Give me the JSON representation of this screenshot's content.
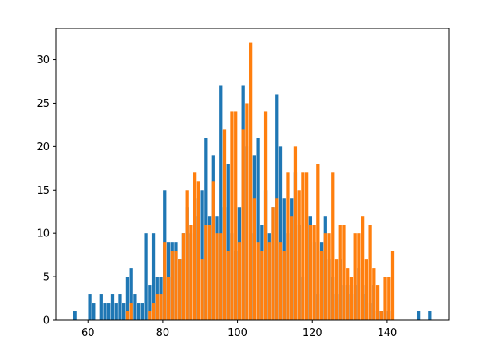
{
  "chart_data": {
    "type": "bar",
    "title": "",
    "xlabel": "",
    "ylabel": "",
    "xlim": [
      51.5,
      156.5
    ],
    "ylim": [
      0,
      33.6
    ],
    "grid": false,
    "legend": "none",
    "xticks": [
      60,
      80,
      100,
      120,
      140
    ],
    "yticks": [
      0,
      5,
      10,
      15,
      20,
      25,
      30
    ],
    "bar_width": 0.9,
    "series": [
      {
        "color": "#1f77b4",
        "bars": [
          [
            56.5,
            1
          ],
          [
            60.5,
            3
          ],
          [
            61.5,
            2
          ],
          [
            63.5,
            3
          ],
          [
            64.5,
            2
          ],
          [
            65.5,
            2
          ],
          [
            66.5,
            3
          ],
          [
            67.5,
            2
          ],
          [
            68.5,
            3
          ],
          [
            69.5,
            2
          ],
          [
            70.5,
            5
          ],
          [
            71.5,
            6
          ],
          [
            72.5,
            3
          ],
          [
            73.5,
            2
          ],
          [
            74.5,
            2
          ],
          [
            75.5,
            10
          ],
          [
            76.5,
            4
          ],
          [
            77.5,
            10
          ],
          [
            78.5,
            5
          ],
          [
            79.5,
            5
          ],
          [
            80.5,
            15
          ],
          [
            81.5,
            9
          ],
          [
            82.5,
            9
          ],
          [
            83.5,
            9
          ],
          [
            84.5,
            7
          ],
          [
            85.5,
            10
          ],
          [
            86.5,
            13
          ],
          [
            87.5,
            10
          ],
          [
            88.5,
            14
          ],
          [
            89.5,
            12
          ],
          [
            90.5,
            15
          ],
          [
            91.5,
            21
          ],
          [
            92.5,
            12
          ],
          [
            93.5,
            19
          ],
          [
            94.5,
            12
          ],
          [
            95.5,
            27
          ],
          [
            96.5,
            13
          ],
          [
            97.5,
            18
          ],
          [
            98.5,
            10
          ],
          [
            99.5,
            8
          ],
          [
            100.5,
            13
          ],
          [
            101.5,
            27
          ],
          [
            102.5,
            20
          ],
          [
            103.5,
            10
          ],
          [
            104.5,
            19
          ],
          [
            105.5,
            21
          ],
          [
            106.5,
            11
          ],
          [
            107.5,
            15
          ],
          [
            108.5,
            10
          ],
          [
            109.5,
            13
          ],
          [
            110.5,
            26
          ],
          [
            111.5,
            20
          ],
          [
            112.5,
            14
          ],
          [
            113.5,
            10
          ],
          [
            114.5,
            14
          ],
          [
            115.5,
            17
          ],
          [
            116.5,
            11
          ],
          [
            117.5,
            5
          ],
          [
            118.5,
            12
          ],
          [
            119.5,
            12
          ],
          [
            120.5,
            9
          ],
          [
            121.5,
            3
          ],
          [
            122.5,
            9
          ],
          [
            123.5,
            12
          ],
          [
            124.5,
            7
          ],
          [
            125.5,
            5
          ],
          [
            126.5,
            3
          ],
          [
            127.5,
            7
          ],
          [
            128.5,
            4
          ],
          [
            129.5,
            4
          ],
          [
            130.5,
            3
          ],
          [
            131.5,
            4
          ],
          [
            132.5,
            6
          ],
          [
            133.5,
            3
          ],
          [
            134.5,
            4
          ],
          [
            135.5,
            2
          ],
          [
            136.5,
            4
          ],
          [
            137.5,
            1
          ],
          [
            138.5,
            1
          ],
          [
            139.5,
            1
          ],
          [
            140.5,
            1
          ],
          [
            148.5,
            1
          ],
          [
            151.5,
            1
          ]
        ]
      },
      {
        "color": "#ff7f0e",
        "bars": [
          [
            70.5,
            1
          ],
          [
            71.5,
            2
          ],
          [
            76.5,
            1
          ],
          [
            77.5,
            2
          ],
          [
            78.5,
            3
          ],
          [
            79.5,
            3
          ],
          [
            80.5,
            9
          ],
          [
            81.5,
            5
          ],
          [
            82.5,
            8
          ],
          [
            83.5,
            8
          ],
          [
            84.5,
            7
          ],
          [
            85.5,
            10
          ],
          [
            86.5,
            15
          ],
          [
            87.5,
            11
          ],
          [
            88.5,
            17
          ],
          [
            89.5,
            16
          ],
          [
            90.5,
            7
          ],
          [
            91.5,
            11
          ],
          [
            92.5,
            11
          ],
          [
            93.5,
            16
          ],
          [
            94.5,
            10
          ],
          [
            95.5,
            10
          ],
          [
            96.5,
            22
          ],
          [
            97.5,
            8
          ],
          [
            98.5,
            24
          ],
          [
            99.5,
            24
          ],
          [
            100.5,
            9
          ],
          [
            101.5,
            22
          ],
          [
            102.5,
            25
          ],
          [
            103.5,
            32
          ],
          [
            104.5,
            14
          ],
          [
            105.5,
            9
          ],
          [
            106.5,
            8
          ],
          [
            107.5,
            24
          ],
          [
            108.5,
            9
          ],
          [
            109.5,
            13
          ],
          [
            110.5,
            14
          ],
          [
            111.5,
            9
          ],
          [
            112.5,
            8
          ],
          [
            113.5,
            17
          ],
          [
            114.5,
            12
          ],
          [
            115.5,
            20
          ],
          [
            116.5,
            15
          ],
          [
            117.5,
            17
          ],
          [
            118.5,
            17
          ],
          [
            119.5,
            11
          ],
          [
            120.5,
            11
          ],
          [
            121.5,
            18
          ],
          [
            122.5,
            8
          ],
          [
            123.5,
            10
          ],
          [
            124.5,
            10
          ],
          [
            125.5,
            17
          ],
          [
            126.5,
            7
          ],
          [
            127.5,
            11
          ],
          [
            128.5,
            11
          ],
          [
            129.5,
            6
          ],
          [
            130.5,
            5
          ],
          [
            131.5,
            10
          ],
          [
            132.5,
            10
          ],
          [
            133.5,
            12
          ],
          [
            134.5,
            7
          ],
          [
            135.5,
            11
          ],
          [
            136.5,
            6
          ],
          [
            137.5,
            4
          ],
          [
            138.5,
            1
          ],
          [
            139.5,
            5
          ],
          [
            140.5,
            5
          ],
          [
            141.5,
            8
          ]
        ]
      }
    ]
  }
}
